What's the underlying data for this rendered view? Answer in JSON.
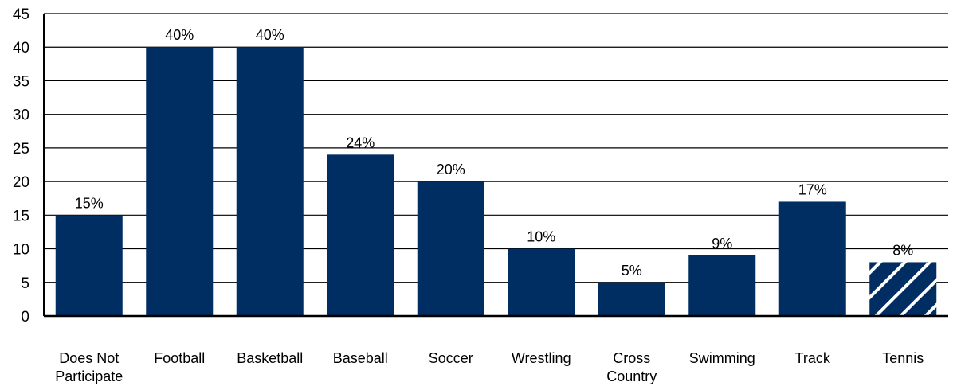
{
  "chart_data": {
    "type": "bar",
    "categories": [
      "Does Not Participate",
      "Football",
      "Basketball",
      "Baseball",
      "Soccer",
      "Wrestling",
      "Cross Country",
      "Swimming",
      "Track",
      "Tennis"
    ],
    "category_lines": [
      [
        "Does Not",
        "Participate"
      ],
      [
        "Football"
      ],
      [
        "Basketball"
      ],
      [
        "Baseball"
      ],
      [
        "Soccer"
      ],
      [
        "Wrestling"
      ],
      [
        "Cross",
        "Country"
      ],
      [
        "Swimming"
      ],
      [
        "Track"
      ],
      [
        "Tennis"
      ]
    ],
    "values": [
      15,
      40,
      40,
      24,
      20,
      10,
      5,
      9,
      17,
      8
    ],
    "data_labels": [
      "15%",
      "40%",
      "40%",
      "24%",
      "20%",
      "10%",
      "5%",
      "9%",
      "17%",
      "8%"
    ],
    "hatched": [
      false,
      false,
      false,
      false,
      false,
      false,
      false,
      false,
      false,
      true
    ],
    "ylim": [
      0,
      45
    ],
    "yticks": [
      0,
      5,
      10,
      15,
      20,
      25,
      30,
      35,
      40,
      45
    ],
    "grid": true,
    "title": "",
    "xlabel": "",
    "ylabel": ""
  },
  "colors": {
    "bar": "#002d62",
    "grid": "#000000",
    "hatch": "#ffffff"
  }
}
